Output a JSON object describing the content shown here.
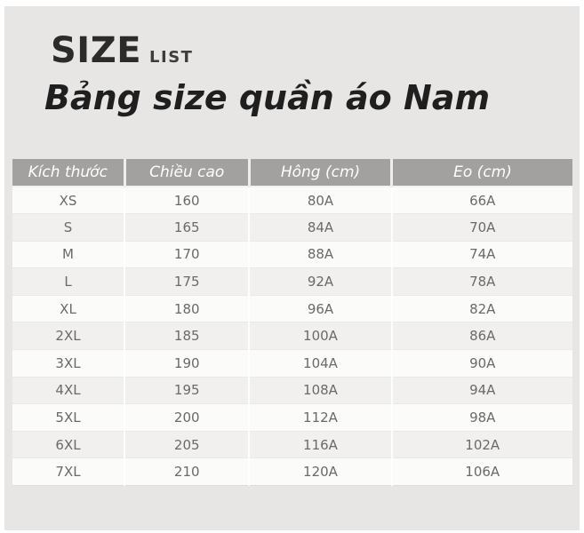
{
  "header": {
    "brand_main": "SIZE",
    "brand_sub": "LIST",
    "title": "Bảng size quần áo Nam"
  },
  "colors": {
    "page_background": "#ffffff",
    "panel_background": "#e7e6e5",
    "table_header_background": "#a2a19f",
    "table_header_text": "#ffffff",
    "row_light": "#fbfbfa",
    "row_dark": "#f1f0ee",
    "cell_text": "#6a6a6a",
    "title_text": "#1f1f1f"
  },
  "table": {
    "columns": [
      "Kích thước",
      "Chiều cao",
      "Hông (cm)",
      "Eo (cm)"
    ],
    "rows": [
      [
        "XS",
        "160",
        "80A",
        "66A"
      ],
      [
        "S",
        "165",
        "84A",
        "70A"
      ],
      [
        "M",
        "170",
        "88A",
        "74A"
      ],
      [
        "L",
        "175",
        "92A",
        "78A"
      ],
      [
        "XL",
        "180",
        "96A",
        "82A"
      ],
      [
        "2XL",
        "185",
        "100A",
        "86A"
      ],
      [
        "3XL",
        "190",
        "104A",
        "90A"
      ],
      [
        "4XL",
        "195",
        "108A",
        "94A"
      ],
      [
        "5XL",
        "200",
        "112A",
        "98A"
      ],
      [
        "6XL",
        "205",
        "116A",
        "102A"
      ],
      [
        "7XL",
        "210",
        "120A",
        "106A"
      ]
    ]
  },
  "chart_data": {
    "type": "table",
    "title": "Bảng size quần áo Nam",
    "subtitle": "SIZE LIST",
    "columns": [
      "Kích thước",
      "Chiều cao",
      "Hông (cm)",
      "Eo (cm)"
    ],
    "rows": [
      [
        "XS",
        "160",
        "80A",
        "66A"
      ],
      [
        "S",
        "165",
        "84A",
        "70A"
      ],
      [
        "M",
        "170",
        "88A",
        "74A"
      ],
      [
        "L",
        "175",
        "92A",
        "78A"
      ],
      [
        "XL",
        "180",
        "96A",
        "82A"
      ],
      [
        "2XL",
        "185",
        "100A",
        "86A"
      ],
      [
        "3XL",
        "190",
        "104A",
        "90A"
      ],
      [
        "4XL",
        "195",
        "108A",
        "94A"
      ],
      [
        "5XL",
        "200",
        "112A",
        "98A"
      ],
      [
        "6XL",
        "205",
        "116A",
        "102A"
      ],
      [
        "7XL",
        "210",
        "120A",
        "106A"
      ]
    ]
  }
}
